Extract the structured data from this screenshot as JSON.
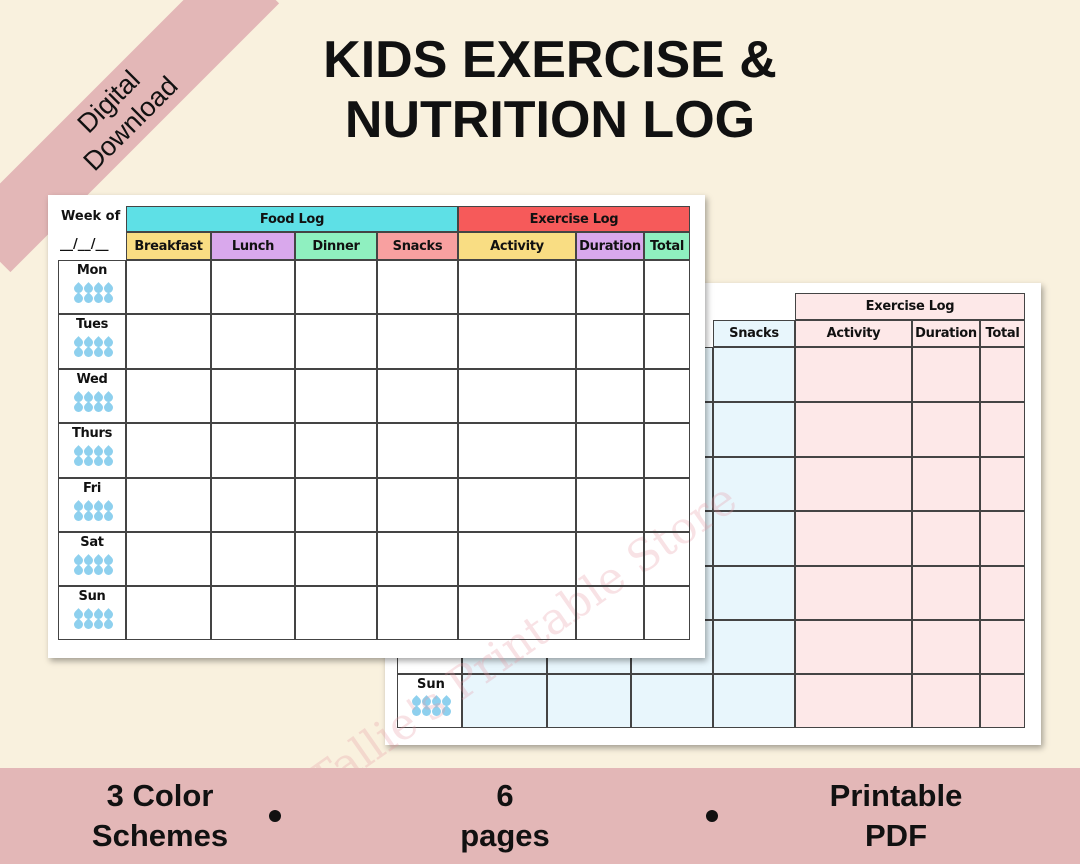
{
  "ribbon": {
    "line1": "Digital",
    "line2": "Download"
  },
  "title": {
    "line1": "KIDS EXERCISE &",
    "line2": "NUTRITION LOG"
  },
  "front_sheet": {
    "week_label": "Week of",
    "date_placeholder": "__/__/__",
    "group_headers": [
      {
        "label": "Food Log",
        "color": "#5ee0e6"
      },
      {
        "label": "Exercise Log",
        "color": "#f65a5a"
      }
    ],
    "columns": [
      {
        "label": "Breakfast",
        "color": "#f9dd83"
      },
      {
        "label": "Lunch",
        "color": "#d9a8ec"
      },
      {
        "label": "Dinner",
        "color": "#8ff0c0"
      },
      {
        "label": "Snacks",
        "color": "#f8a0a0"
      },
      {
        "label": "Activity",
        "color": "#f9dd83"
      },
      {
        "label": "Duration",
        "color": "#d9a8ec"
      },
      {
        "label": "Total",
        "color": "#8ff0c0"
      }
    ],
    "days": [
      "Mon",
      "Tues",
      "Wed",
      "Thurs",
      "Fri",
      "Sat",
      "Sun"
    ],
    "watermark": "Tallie's Printable Store"
  },
  "back_sheet": {
    "group_header": "Exercise Log",
    "columns": [
      "Snacks",
      "Activity",
      "Duration",
      "Total"
    ],
    "food_color": "#e8f6fc",
    "exercise_color": "#fde8e8",
    "visible_day": "Sun"
  },
  "features": [
    {
      "line1": "3 Color",
      "line2": "Schemes"
    },
    {
      "line1": "6",
      "line2": "pages"
    },
    {
      "line1": "Printable",
      "line2": "PDF"
    }
  ]
}
